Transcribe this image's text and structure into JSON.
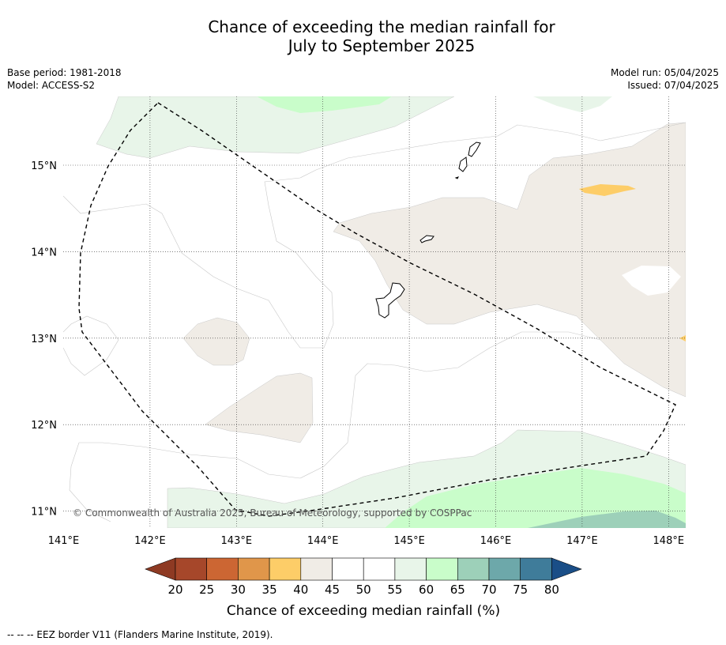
{
  "header": {
    "title_line1": "Chance of exceeding the median rainfall for",
    "title_line2": "July to September 2025",
    "base_period": "Base period: 1981-2018",
    "model": "Model: ACCESS-S2",
    "model_run": "Model run: 05/04/2025",
    "issued": "Issued: 07/04/2025"
  },
  "map": {
    "lon_labels": [
      "141°E",
      "142°E",
      "143°E",
      "144°E",
      "145°E",
      "146°E",
      "147°E",
      "148°E"
    ],
    "lat_labels": [
      "15°N",
      "14°N",
      "13°N",
      "12°N",
      "11°N"
    ],
    "copyright": "© Commonwealth of Australia 2025, Bureau of Meteorology, supported by COSPPac"
  },
  "colorbar": {
    "ticks": [
      "20",
      "25",
      "30",
      "35",
      "40",
      "45",
      "50",
      "55",
      "60",
      "65",
      "70",
      "75",
      "80"
    ],
    "colors": [
      "#a6472a",
      "#cc6633",
      "#e0964a",
      "#fdcd68",
      "#f0ece6",
      "#ffffff",
      "#ffffff",
      "#e8f5e9",
      "#c9fdca",
      "#9dd0b9",
      "#6da8aa",
      "#3f7c9a"
    ],
    "under_color": "#8e3a23",
    "over_color": "#1a4e87",
    "label": "Chance of exceeding median rainfall (%)"
  },
  "footnote": "--  --  -- EEZ border V11 (Flanders Marine Institute, 2019)."
}
